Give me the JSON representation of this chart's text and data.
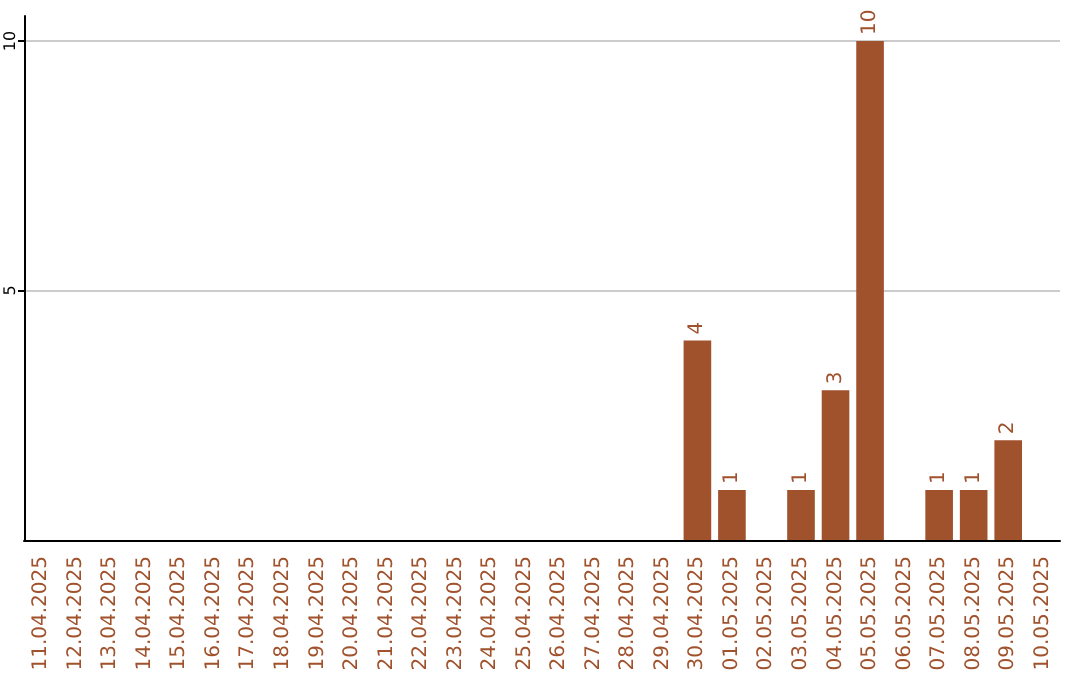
{
  "chart_data": {
    "type": "bar",
    "categories": [
      "11.04.2025",
      "12.04.2025",
      "13.04.2025",
      "14.04.2025",
      "15.04.2025",
      "16.04.2025",
      "17.04.2025",
      "18.04.2025",
      "19.04.2025",
      "20.04.2025",
      "21.04.2025",
      "22.04.2025",
      "23.04.2025",
      "24.04.2025",
      "25.04.2025",
      "26.04.2025",
      "27.04.2025",
      "28.04.2025",
      "29.04.2025",
      "30.04.2025",
      "01.05.2025",
      "02.05.2025",
      "03.05.2025",
      "04.05.2025",
      "05.05.2025",
      "06.05.2025",
      "07.05.2025",
      "08.05.2025",
      "09.05.2025",
      "10.05.2025"
    ],
    "values": [
      0,
      0,
      0,
      0,
      0,
      0,
      0,
      0,
      0,
      0,
      0,
      0,
      0,
      0,
      0,
      0,
      0,
      0,
      0,
      4,
      1,
      0,
      1,
      3,
      10,
      0,
      1,
      1,
      2,
      0
    ],
    "value_labels": [
      null,
      null,
      null,
      null,
      null,
      null,
      null,
      null,
      null,
      null,
      null,
      null,
      null,
      null,
      null,
      null,
      null,
      null,
      null,
      "4",
      "1",
      null,
      "1",
      "3",
      "10",
      null,
      "1",
      "1",
      "2",
      null
    ],
    "color": "#a0522d",
    "ylim": [
      0,
      10.5
    ],
    "yticks": [
      5,
      10
    ],
    "grid": "y"
  }
}
